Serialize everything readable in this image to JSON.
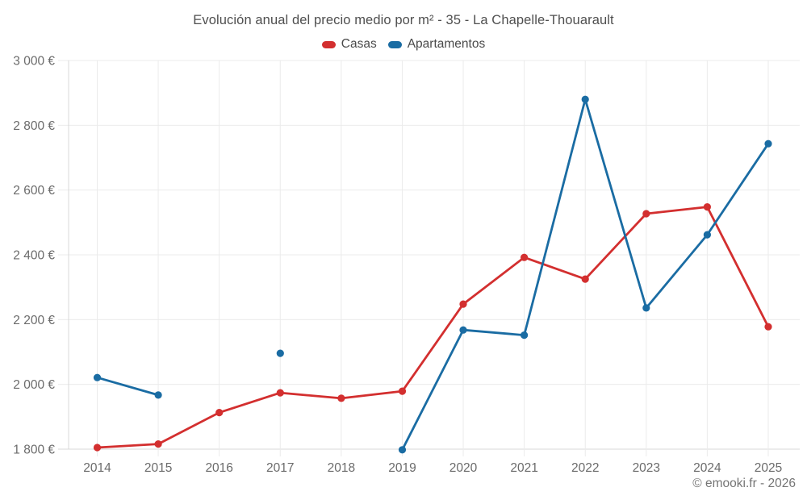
{
  "header": {
    "title": "Evolución anual del precio medio por m² - 35 - La Chapelle-Thouarault"
  },
  "footer": {
    "copyright": "© emooki.fr - 2026"
  },
  "chart_data": {
    "type": "line",
    "title": "Evolución anual del precio medio por m² - 35 - La Chapelle-Thouarault",
    "xlabel": "",
    "ylabel": "",
    "x": [
      2014,
      2015,
      2016,
      2017,
      2018,
      2019,
      2020,
      2021,
      2022,
      2023,
      2024,
      2025
    ],
    "xtick_labels": [
      "2014",
      "2015",
      "2016",
      "2017",
      "2018",
      "2019",
      "2020",
      "2021",
      "2022",
      "2023",
      "2024",
      "2025"
    ],
    "series": [
      {
        "name": "Casas",
        "color": "#d32f2f",
        "values": [
          1805,
          1816,
          1913,
          1974,
          1957,
          1979,
          2248,
          2392,
          2325,
          2527,
          2548,
          2178
        ]
      },
      {
        "name": "Apartamentos",
        "color": "#1a6ca3",
        "values": [
          2021,
          1967,
          null,
          2096,
          null,
          1798,
          2168,
          2152,
          2880,
          2236,
          2462,
          2743
        ]
      }
    ],
    "ylim": [
      1800,
      3000
    ],
    "ytick_step": 200,
    "yticks": [
      1800,
      2000,
      2200,
      2400,
      2600,
      2800,
      3000
    ],
    "ytick_labels": [
      "1 800 €",
      "2 000 €",
      "2 200 €",
      "2 400 €",
      "2 600 €",
      "2 800 €",
      "3 000 €"
    ],
    "grid": true,
    "legend_position": "top",
    "grid_color": "#ebebeb",
    "axis_color": "#d9d9d9",
    "tick_label_color": "#6b6b6b",
    "title_color": "#4f4f4f",
    "background_color": "#ffffff"
  }
}
